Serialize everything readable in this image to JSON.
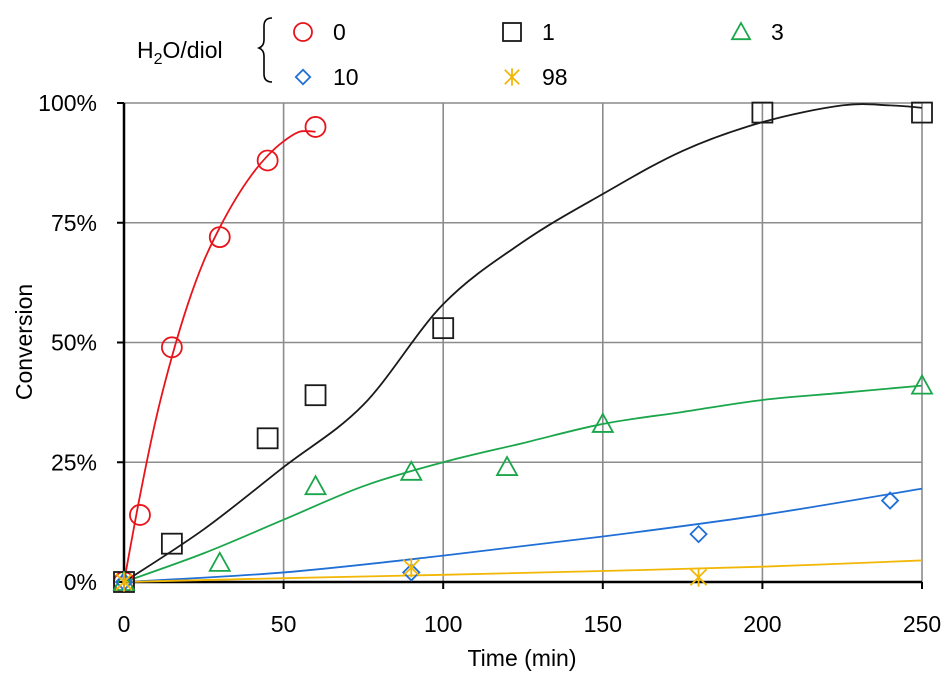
{
  "chart_data": {
    "type": "scatter",
    "title": "",
    "xlabel": "Time (min)",
    "ylabel": "Conversion",
    "xlim": [
      0,
      250
    ],
    "ylim": [
      0,
      100
    ],
    "x_ticks": [
      "0",
      "50",
      "100",
      "150",
      "200",
      "250"
    ],
    "x_tick_values": [
      0,
      50,
      100,
      150,
      200,
      250
    ],
    "y_ticks": [
      "0%",
      "25%",
      "50%",
      "75%",
      "100%"
    ],
    "y_tick_values": [
      0,
      25,
      50,
      75,
      100
    ],
    "grid": true,
    "legend": {
      "title_main": "H",
      "title_sub": "2",
      "title_rest": "O/diol",
      "placement": "top"
    },
    "series": [
      {
        "name": "0",
        "marker": "circle",
        "color": "#e8141b",
        "points": [
          [
            0,
            0
          ],
          [
            5,
            14
          ],
          [
            15,
            49
          ],
          [
            30,
            72
          ],
          [
            45,
            88
          ],
          [
            60,
            95
          ]
        ],
        "fit": [
          [
            0,
            0
          ],
          [
            5,
            18
          ],
          [
            10,
            34
          ],
          [
            15,
            47
          ],
          [
            20,
            58
          ],
          [
            25,
            67
          ],
          [
            30,
            74
          ],
          [
            35,
            80
          ],
          [
            40,
            85
          ],
          [
            45,
            89
          ],
          [
            50,
            92
          ],
          [
            55,
            94
          ],
          [
            60,
            94
          ]
        ]
      },
      {
        "name": "1",
        "marker": "square",
        "color": "#1a1a1a",
        "points": [
          [
            0,
            0
          ],
          [
            15,
            8
          ],
          [
            45,
            30
          ],
          [
            60,
            39
          ],
          [
            100,
            53
          ],
          [
            200,
            98
          ],
          [
            250,
            98
          ]
        ],
        "fit": [
          [
            0,
            0
          ],
          [
            25,
            11
          ],
          [
            50,
            24
          ],
          [
            75,
            37
          ],
          [
            100,
            58
          ],
          [
            125,
            71
          ],
          [
            150,
            81
          ],
          [
            175,
            90
          ],
          [
            200,
            96
          ],
          [
            225,
            99.5
          ],
          [
            240,
            99.5
          ],
          [
            250,
            99
          ]
        ]
      },
      {
        "name": "3",
        "marker": "triangle",
        "color": "#1aa64b",
        "points": [
          [
            0,
            0
          ],
          [
            30,
            4
          ],
          [
            60,
            20
          ],
          [
            90,
            23
          ],
          [
            120,
            24
          ],
          [
            150,
            33
          ],
          [
            250,
            41
          ]
        ],
        "fit": [
          [
            0,
            0
          ],
          [
            25,
            6
          ],
          [
            50,
            13
          ],
          [
            75,
            20
          ],
          [
            100,
            25
          ],
          [
            125,
            29
          ],
          [
            150,
            33
          ],
          [
            175,
            35.5
          ],
          [
            200,
            38
          ],
          [
            225,
            39.5
          ],
          [
            250,
            41
          ]
        ]
      },
      {
        "name": "10",
        "marker": "diamond",
        "color": "#1f6fd6",
        "points": [
          [
            0,
            0
          ],
          [
            90,
            2
          ],
          [
            180,
            10
          ],
          [
            240,
            17
          ]
        ],
        "fit": [
          [
            0,
            0
          ],
          [
            50,
            2
          ],
          [
            100,
            5.5
          ],
          [
            150,
            9.5
          ],
          [
            200,
            14
          ],
          [
            250,
            19.5
          ]
        ]
      },
      {
        "name": "98",
        "marker": "asterisk",
        "color": "#f2b705",
        "points": [
          [
            0,
            0
          ],
          [
            90,
            3
          ],
          [
            180,
            1
          ]
        ],
        "fit": [
          [
            0,
            0
          ],
          [
            50,
            0.8
          ],
          [
            100,
            1.5
          ],
          [
            150,
            2.3
          ],
          [
            200,
            3.2
          ],
          [
            250,
            4.5
          ]
        ]
      }
    ]
  }
}
